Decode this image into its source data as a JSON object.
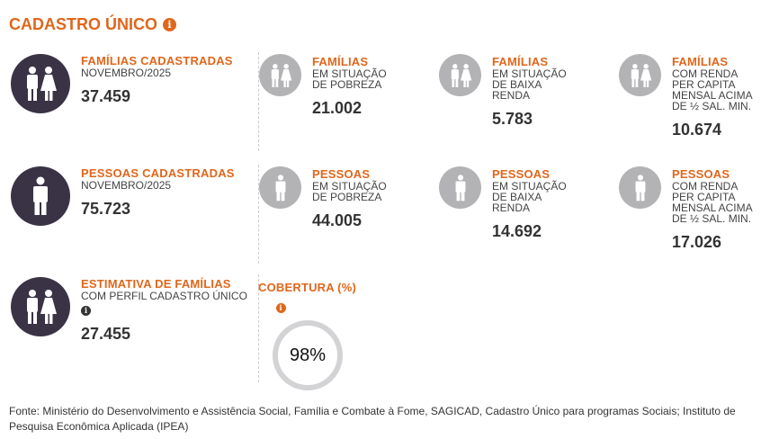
{
  "title": "CADASTRO ÚNICO",
  "colors": {
    "accent": "#e0661b",
    "dark_icon": "#3a3346",
    "gray_icon": "#b3b3b5"
  },
  "rows": [
    {
      "main": {
        "label": "FAMÍLIAS CADASTRADAS",
        "sub": "NOVEMBRO/2025",
        "value": "37.459",
        "icon": "family-icon"
      },
      "items": [
        {
          "label": "FAMÍLIAS",
          "sub": [
            "EM SITUAÇÃO",
            "DE POBREZA"
          ],
          "value": "21.002",
          "icon": "family-icon"
        },
        {
          "label": "FAMÍLIAS",
          "sub": [
            "EM SITUAÇÃO",
            "DE BAIXA",
            "RENDA"
          ],
          "value": "5.783",
          "icon": "family-icon"
        },
        {
          "label": "FAMÍLIAS",
          "sub": [
            "COM RENDA",
            "PER CAPITA",
            "MENSAL ACIMA",
            "DE ½ SAL. MIN."
          ],
          "value": "10.674",
          "icon": "family-icon"
        }
      ]
    },
    {
      "main": {
        "label": "PESSOAS CADASTRADAS",
        "sub": "NOVEMBRO/2025",
        "value": "75.723",
        "icon": "person-icon"
      },
      "items": [
        {
          "label": "PESSOAS",
          "sub": [
            "EM SITUAÇÃO",
            "DE POBREZA"
          ],
          "value": "44.005",
          "icon": "person-icon"
        },
        {
          "label": "PESSOAS",
          "sub": [
            "EM SITUAÇÃO",
            "DE BAIXA",
            "RENDA"
          ],
          "value": "14.692",
          "icon": "person-icon"
        },
        {
          "label": "PESSOAS",
          "sub": [
            "COM RENDA",
            "PER CAPITA",
            "MENSAL ACIMA",
            "DE ½ SAL. MIN."
          ],
          "value": "17.026",
          "icon": "person-icon"
        }
      ]
    }
  ],
  "estimate": {
    "label": "ESTIMATIVA DE FAMÍLIAS",
    "sub": "COM PERFIL CADASTRO ÚNICO",
    "value": "27.455"
  },
  "coverage": {
    "label": "COBERTURA (%)",
    "value": "98%",
    "percent": 98
  },
  "footer": "Fonte: Ministério do Desenvolvimento e Assistência Social, Família e Combate à Fome, SAGICAD, Cadastro Único para programas Sociais; Instituto de Pesquisa Econômica Aplicada (IPEA)"
}
